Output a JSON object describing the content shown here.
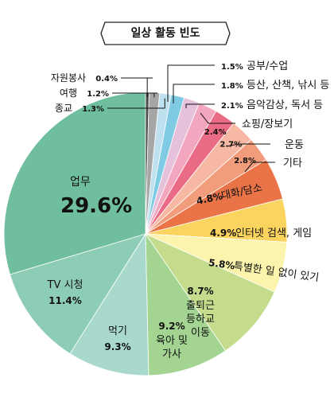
{
  "title": "일상 활동 빈도",
  "chart_data": {
    "type": "pie",
    "title": "일상 활동 빈도",
    "slices": [
      {
        "label": "자원봉사",
        "value": 0.4,
        "value_text": "0.4%",
        "color": "#4d4d4d"
      },
      {
        "label": "여행",
        "value": 1.2,
        "value_text": "1.2%",
        "color": "#a6a6a6"
      },
      {
        "label": "종교",
        "value": 1.3,
        "value_text": "1.3%",
        "color": "#bfe0ee"
      },
      {
        "label": "공부/수업",
        "value": 1.5,
        "value_text": "1.5%",
        "color": "#7fcbe4"
      },
      {
        "label": "등산, 산책, 낚시 등",
        "value": 1.8,
        "value_text": "1.8%",
        "color": "#e5c1dc"
      },
      {
        "label": "음악감상, 독서 등",
        "value": 2.1,
        "value_text": "2.1%",
        "color": "#f3a7bf"
      },
      {
        "label": "쇼핑/장보기",
        "value": 2.4,
        "value_text": "2.4%",
        "color": "#e96b85"
      },
      {
        "label": "운동",
        "value": 2.7,
        "value_text": "2.7%",
        "color": "#f6b8a2"
      },
      {
        "label": "기타",
        "value": 2.8,
        "value_text": "2.8%",
        "color": "#f19d7c"
      },
      {
        "label": "대화/담소",
        "value": 4.8,
        "value_text": "4.8%",
        "color": "#ea7448"
      },
      {
        "label": "인터넷 검색, 게임",
        "value": 4.9,
        "value_text": "4.9%",
        "color": "#fbd35f"
      },
      {
        "label": "특별한 일 없이 있기",
        "value": 5.8,
        "value_text": "5.8%",
        "color": "#fcf4ac"
      },
      {
        "label": "출퇴근\n등하교\n이동",
        "value": 8.7,
        "value_text": "8.7%",
        "color": "#c4dc8c"
      },
      {
        "label": "육아 및\n가사",
        "value": 9.2,
        "value_text": "9.2%",
        "color": "#a3d492"
      },
      {
        "label": "먹기",
        "value": 9.3,
        "value_text": "9.3%",
        "color": "#a9d9cd"
      },
      {
        "label": "TV 시청",
        "value": 11.4,
        "value_text": "11.4%",
        "color": "#8ecdb5"
      },
      {
        "label": "업무",
        "value": 29.6,
        "value_text": "29.6%",
        "color": "#6fbf9f"
      }
    ],
    "legend": "none"
  }
}
